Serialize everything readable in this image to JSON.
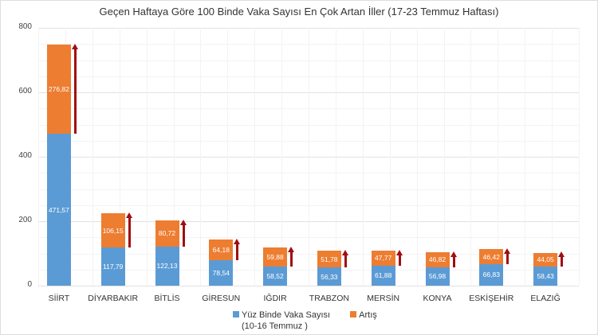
{
  "chart_data": {
    "type": "bar",
    "stacked": true,
    "title": "Geçen Haftaya Göre 100 Binde Vaka Sayısı En Çok Artan İller (17-23 Temmuz Haftası)",
    "xlabel": "",
    "ylabel": "",
    "ylim": [
      0,
      800
    ],
    "yticks": [
      "0",
      "200",
      "400",
      "600",
      "800"
    ],
    "grid": true,
    "legend_position": "bottom",
    "categories": [
      "SİİRT",
      "DİYARBAKIR",
      "BİTLİS",
      "GİRESUN",
      "IĞDIR",
      "TRABZON",
      "MERSİN",
      "KONYA",
      "ESKİŞEHİR",
      "ELAZIĞ"
    ],
    "series": [
      {
        "name": "Yüz Binde Vaka Sayısı (10-16 Temmuz )",
        "color": "#5b9bd5",
        "values": [
          471.57,
          117.79,
          122.13,
          78.54,
          58.52,
          56.33,
          61.88,
          56.98,
          66.83,
          58.43
        ],
        "labels": [
          "471,57",
          "117,79",
          "122,13",
          "78,54",
          "58,52",
          "56,33",
          "61,88",
          "56,98",
          "66,83",
          "58,43"
        ]
      },
      {
        "name": "Artış",
        "color": "#ed7d31",
        "values": [
          276.82,
          106.15,
          80.72,
          64.18,
          59.88,
          51.78,
          47.77,
          46.82,
          46.42,
          44.05
        ],
        "labels": [
          "276,82",
          "106,15",
          "80,72",
          "64,18",
          "59,88",
          "51,78",
          "47,77",
          "46,82",
          "46,42",
          "44,05"
        ]
      }
    ],
    "annotations": "Dark red upward arrows beside each bar spanning the increase (Artış) segment"
  },
  "legend": {
    "item1_line1": "Yüz Binde Vaka Sayısı",
    "item1_line2": "(10-16 Temmuz )",
    "item2": "Artış"
  }
}
